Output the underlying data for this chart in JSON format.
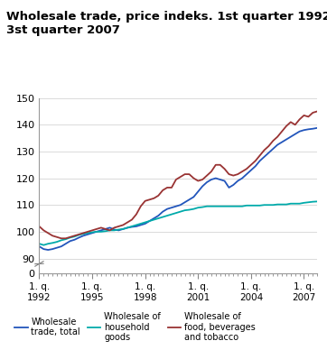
{
  "title": "Wholesale trade, price indeks. 1st quarter 1992-\n3st quarter 2007",
  "title_fontsize": 9.5,
  "title_fontweight": "bold",
  "xlim_min": 0,
  "xlim_max": 63,
  "ylim_main_min": 88,
  "ylim_main_max": 150,
  "ylim_stub_min": 0,
  "ylim_stub_max": 5,
  "yticks_main": [
    90,
    100,
    110,
    120,
    130,
    140,
    150
  ],
  "yticks_stub": [
    0
  ],
  "xtick_positions": [
    0,
    12,
    24,
    36,
    48,
    60
  ],
  "xtick_labels": [
    "1. q.\n1992",
    "1. q.\n1995",
    "1. q.\n1998",
    "1. q.\n2001",
    "1. q.\n2004",
    "1. q.\n2007"
  ],
  "color_total": "#2255bb",
  "color_household": "#00aaaa",
  "color_food": "#993333",
  "legend_labels": [
    "Wholesale\ntrade, total",
    "Wholesale of\nhousehold\ngoods",
    "Wholesale of\nfood, beverages\nand tobacco"
  ],
  "wholesale_total": [
    94.5,
    93.5,
    93.2,
    93.5,
    94.0,
    94.5,
    95.5,
    96.5,
    97.0,
    97.8,
    98.5,
    99.0,
    99.5,
    100.0,
    100.5,
    101.0,
    101.5,
    100.8,
    100.5,
    101.0,
    101.5,
    101.8,
    102.0,
    102.5,
    103.0,
    104.0,
    105.0,
    106.0,
    107.5,
    108.5,
    109.0,
    109.5,
    110.0,
    111.0,
    112.0,
    113.0,
    115.0,
    117.0,
    118.5,
    119.5,
    120.0,
    119.5,
    119.0,
    116.5,
    117.5,
    119.0,
    120.0,
    121.5,
    123.0,
    124.5,
    126.5,
    128.0,
    129.5,
    131.0,
    132.5,
    133.5,
    134.5,
    135.5,
    136.5,
    137.5,
    138.0,
    138.3,
    138.5,
    138.8
  ],
  "wholesale_household": [
    95.5,
    95.0,
    95.5,
    95.8,
    96.2,
    96.8,
    97.2,
    97.8,
    98.2,
    98.8,
    99.2,
    99.5,
    99.8,
    100.0,
    100.0,
    100.2,
    100.5,
    100.5,
    100.8,
    101.0,
    101.5,
    102.0,
    102.5,
    103.0,
    103.5,
    104.0,
    104.5,
    105.0,
    105.5,
    106.0,
    106.5,
    107.0,
    107.5,
    108.0,
    108.2,
    108.5,
    109.0,
    109.2,
    109.5,
    109.5,
    109.5,
    109.5,
    109.5,
    109.5,
    109.5,
    109.5,
    109.5,
    109.8,
    109.8,
    109.8,
    109.8,
    110.0,
    110.0,
    110.0,
    110.2,
    110.2,
    110.2,
    110.5,
    110.5,
    110.5,
    110.8,
    111.0,
    111.2,
    111.3
  ],
  "wholesale_food": [
    102.0,
    100.5,
    99.5,
    98.5,
    98.0,
    97.5,
    97.5,
    98.0,
    98.5,
    99.0,
    99.5,
    100.0,
    100.5,
    101.0,
    101.5,
    101.0,
    100.5,
    101.5,
    102.0,
    102.5,
    103.5,
    104.5,
    106.5,
    109.5,
    111.5,
    112.0,
    112.5,
    113.5,
    115.5,
    116.5,
    116.5,
    119.5,
    120.5,
    121.5,
    121.5,
    120.0,
    119.0,
    119.5,
    121.0,
    122.5,
    125.0,
    125.0,
    123.5,
    121.5,
    121.0,
    121.5,
    122.5,
    123.5,
    125.0,
    126.5,
    128.5,
    130.5,
    132.0,
    134.0,
    135.5,
    137.5,
    139.5,
    141.0,
    140.0,
    142.0,
    143.5,
    143.0,
    144.5,
    145.0
  ]
}
